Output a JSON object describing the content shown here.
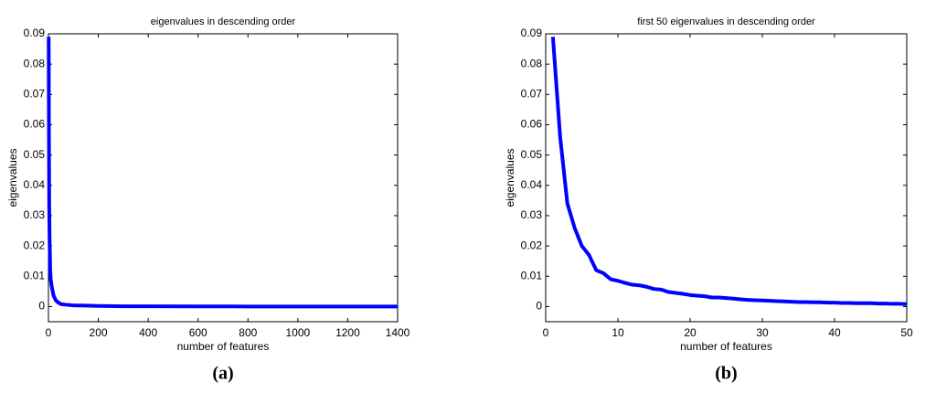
{
  "chart_data": [
    {
      "type": "line",
      "title": "eigenvalues in descending order",
      "xlabel": "number of features",
      "ylabel": "eigenvalues",
      "caption": "(a)",
      "x": [
        1,
        2,
        3,
        4,
        5,
        6,
        7,
        8,
        9,
        10,
        12,
        15,
        20,
        25,
        30,
        40,
        50,
        70,
        100,
        150,
        200,
        300,
        400,
        600,
        800,
        1000,
        1200,
        1400
      ],
      "series": [
        {
          "name": "eigenvalues",
          "color": "#0000ff",
          "values": [
            0.089,
            0.056,
            0.034,
            0.026,
            0.02,
            0.017,
            0.012,
            0.011,
            0.009,
            0.0085,
            0.0072,
            0.0058,
            0.0038,
            0.0028,
            0.002,
            0.0013,
            0.0008,
            0.0006,
            0.0004,
            0.0003,
            0.0002,
            0.0001,
            0.0001,
            5e-05,
            3e-05,
            2e-05,
            1e-05,
            0
          ]
        }
      ],
      "xlim": [
        0,
        1400
      ],
      "ylim": [
        -0.005,
        0.09
      ],
      "xticks": [
        0,
        200,
        400,
        600,
        800,
        1000,
        1200,
        1400
      ],
      "yticks": [
        0,
        0.01,
        0.02,
        0.03,
        0.04,
        0.05,
        0.06,
        0.07,
        0.08,
        0.09
      ]
    },
    {
      "type": "line",
      "title": "first 50 eigenvalues in descending order",
      "xlabel": "number of features",
      "ylabel": "eigenvalues",
      "caption": "(b)",
      "x": [
        1,
        2,
        3,
        4,
        5,
        6,
        7,
        8,
        9,
        10,
        11,
        12,
        13,
        14,
        15,
        16,
        17,
        18,
        19,
        20,
        21,
        22,
        23,
        24,
        25,
        26,
        27,
        28,
        29,
        30,
        31,
        32,
        33,
        34,
        35,
        36,
        37,
        38,
        39,
        40,
        41,
        42,
        43,
        44,
        45,
        46,
        47,
        48,
        49,
        50
      ],
      "series": [
        {
          "name": "eigenvalues",
          "color": "#0000ff",
          "values": [
            0.089,
            0.056,
            0.034,
            0.026,
            0.02,
            0.017,
            0.012,
            0.011,
            0.009,
            0.0085,
            0.0078,
            0.0072,
            0.007,
            0.0065,
            0.0058,
            0.0056,
            0.0048,
            0.0045,
            0.0042,
            0.0038,
            0.0036,
            0.0034,
            0.003,
            0.003,
            0.0028,
            0.0026,
            0.0024,
            0.0022,
            0.0021,
            0.002,
            0.0019,
            0.0018,
            0.0017,
            0.0016,
            0.0015,
            0.0015,
            0.0014,
            0.0014,
            0.0013,
            0.0013,
            0.0012,
            0.0012,
            0.0011,
            0.0011,
            0.0011,
            0.001,
            0.001,
            0.0009,
            0.0009,
            0.0008
          ]
        }
      ],
      "xlim": [
        0,
        50
      ],
      "ylim": [
        -0.005,
        0.09
      ],
      "xticks": [
        0,
        10,
        20,
        30,
        40,
        50
      ],
      "yticks": [
        0,
        0.01,
        0.02,
        0.03,
        0.04,
        0.05,
        0.06,
        0.07,
        0.08,
        0.09
      ]
    }
  ]
}
